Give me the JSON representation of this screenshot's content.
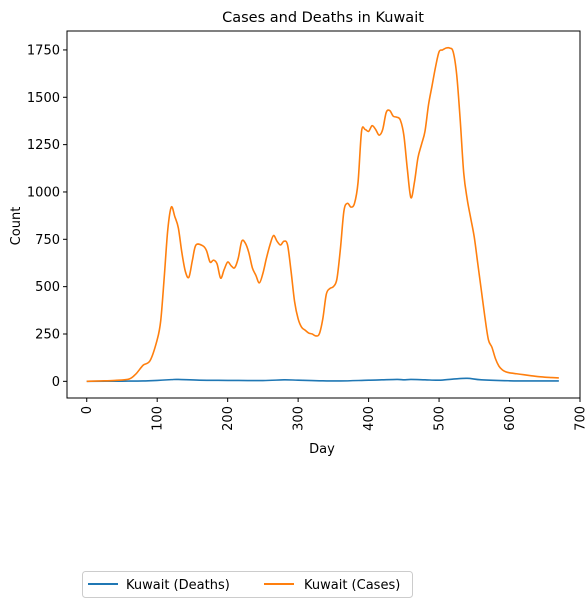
{
  "chart_data": {
    "type": "line",
    "title": "Cases and Deaths in Kuwait",
    "xlabel": "Day",
    "ylabel": "Count",
    "xlim": [
      -28,
      700
    ],
    "ylim": [
      -88,
      1850
    ],
    "xticks": [
      0,
      100,
      200,
      300,
      400,
      500,
      600,
      700
    ],
    "yticks": [
      0,
      250,
      500,
      750,
      1000,
      1250,
      1500,
      1750
    ],
    "grid": false,
    "legend_position": "bottom-left, outside plot",
    "series": [
      {
        "name": "Kuwait (Deaths)",
        "color": "#1f77b4",
        "x": [
          0,
          50,
          80,
          100,
          120,
          130,
          160,
          200,
          250,
          280,
          300,
          330,
          360,
          400,
          440,
          450,
          460,
          480,
          500,
          520,
          540,
          560,
          600,
          640,
          670
        ],
        "y": [
          0,
          1,
          2,
          5,
          9,
          10,
          6,
          5,
          4,
          8,
          6,
          3,
          2,
          6,
          10,
          8,
          10,
          8,
          6,
          12,
          16,
          8,
          3,
          2,
          2
        ]
      },
      {
        "name": "Kuwait (Cases)",
        "color": "#ff7f0e",
        "x": [
          0,
          20,
          40,
          60,
          70,
          80,
          90,
          100,
          105,
          110,
          115,
          120,
          125,
          130,
          135,
          140,
          145,
          150,
          155,
          165,
          170,
          175,
          180,
          185,
          190,
          195,
          200,
          205,
          210,
          215,
          220,
          225,
          230,
          235,
          240,
          245,
          250,
          255,
          260,
          265,
          270,
          275,
          280,
          285,
          290,
          295,
          300,
          305,
          310,
          315,
          320,
          325,
          330,
          335,
          340,
          345,
          350,
          355,
          360,
          365,
          370,
          375,
          380,
          385,
          390,
          395,
          400,
          405,
          410,
          415,
          420,
          425,
          430,
          435,
          440,
          445,
          450,
          455,
          460,
          465,
          470,
          475,
          480,
          485,
          490,
          495,
          500,
          505,
          510,
          515,
          520,
          525,
          530,
          535,
          540,
          545,
          550,
          555,
          560,
          565,
          570,
          575,
          580,
          585,
          590,
          595,
          600,
          610,
          620,
          630,
          640,
          650,
          660,
          670
        ],
        "y": [
          0,
          2,
          5,
          12,
          40,
          85,
          110,
          220,
          320,
          550,
          800,
          920,
          870,
          810,
          680,
          580,
          550,
          640,
          720,
          715,
          690,
          630,
          640,
          620,
          545,
          590,
          630,
          610,
          600,
          650,
          740,
          730,
          680,
          600,
          560,
          520,
          570,
          650,
          720,
          770,
          740,
          720,
          740,
          720,
          580,
          420,
          330,
          285,
          270,
          255,
          250,
          240,
          250,
          330,
          460,
          490,
          500,
          540,
          700,
          900,
          940,
          920,
          940,
          1050,
          1320,
          1330,
          1320,
          1350,
          1330,
          1300,
          1330,
          1420,
          1430,
          1400,
          1395,
          1380,
          1300,
          1120,
          970,
          1050,
          1180,
          1250,
          1320,
          1460,
          1560,
          1660,
          1740,
          1750,
          1760,
          1760,
          1740,
          1620,
          1380,
          1100,
          960,
          860,
          760,
          620,
          480,
          340,
          220,
          180,
          120,
          80,
          60,
          50,
          45,
          40,
          35,
          30,
          25,
          22,
          20,
          18
        ]
      }
    ]
  }
}
